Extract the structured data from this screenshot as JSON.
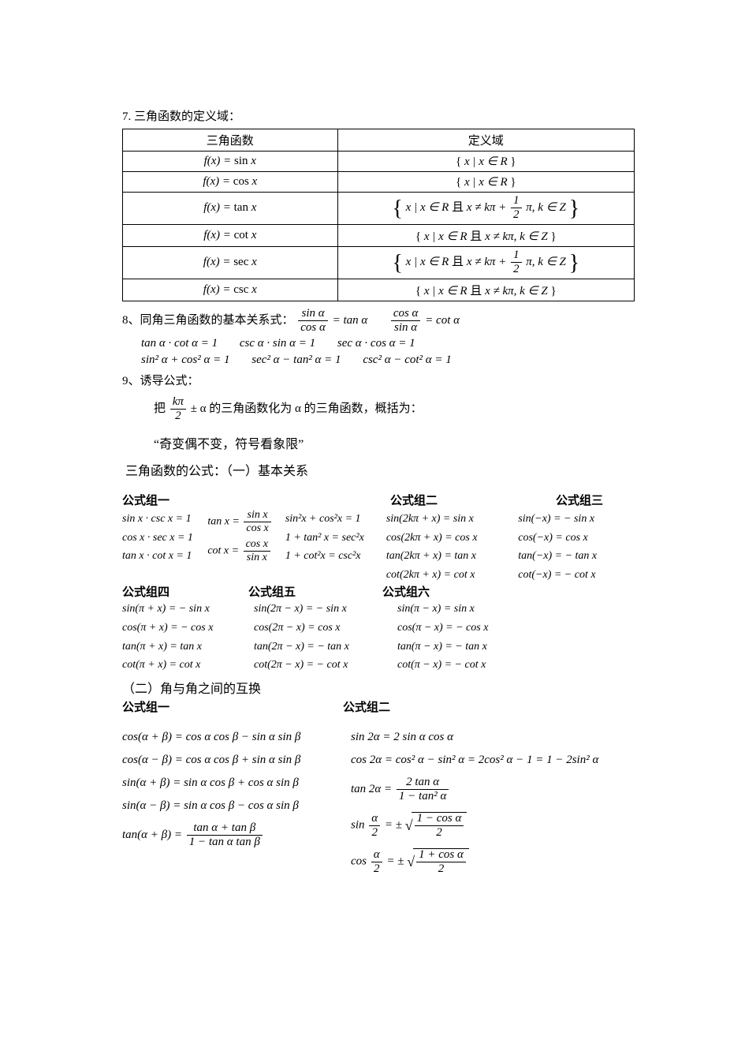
{
  "section7_title": "7. 三角函数的定义域：",
  "domain_table": {
    "headers": [
      "三角函数",
      "定义域"
    ],
    "rows": [
      {
        "func": "f(x) = sin x",
        "domain_type": "R",
        "tall": false
      },
      {
        "func": "f(x) = cos x",
        "domain_type": "R",
        "tall": false
      },
      {
        "func": "f(x) = tan x",
        "domain_type": "halfpi",
        "tall": true
      },
      {
        "func": "f(x) = cot x",
        "domain_type": "kpi",
        "tall": false
      },
      {
        "func": "f(x) = sec x",
        "domain_type": "halfpi",
        "tall": true
      },
      {
        "func": "f(x) = csc x",
        "domain_type": "kpi",
        "tall": false
      }
    ],
    "domain_R": "{ x | x ∈ R }",
    "domain_kpi_prefix": "{ x | x ∈ R 且 x ≠ kπ, k ∈ Z }",
    "domain_halfpi_prefix": "x | x ∈ R 且 x ≠ kπ + ",
    "domain_halfpi_suffix": " π, k ∈ Z"
  },
  "section8_title": "8、同角三角函数的基本关系式：",
  "section8": {
    "line1a_lhs_num": "sin α",
    "line1a_lhs_den": "cos α",
    "line1a_rhs": " = tan α",
    "line1b_lhs_num": "cos α",
    "line1b_lhs_den": "sin α",
    "line1b_rhs": " = cot α",
    "line2a": "tan α · cot α = 1",
    "line2b": "csc α · sin α = 1",
    "line2c": "sec α · cos α = 1",
    "line3a": "sin² α + cos² α = 1",
    "line3b": "sec² α − tan² α = 1",
    "line3c": "csc² α − cot² α = 1"
  },
  "section9_title": "9、诱导公式：",
  "section9": {
    "intro_prefix": "把 ",
    "intro_frac_num": "kπ",
    "intro_frac_den": "2",
    "intro_suffix": " ± α 的三角函数化为 α 的三角函数，概括为：",
    "quote": "“奇变偶不变，符号看象限”",
    "sub1": "三角函数的公式：（一）基本关系"
  },
  "groups": {
    "g1_title": "公式组一",
    "g2_title": "公式组二",
    "g3_title": "公式组三",
    "g4_title": "公式组四",
    "g5_title": "公式组五",
    "g6_title": "公式组六",
    "g1": {
      "c1": [
        "sin x · csc x = 1",
        "cos x · sec x = 1",
        "tan x · cot x = 1"
      ],
      "c2_tan_num": "sin x",
      "c2_tan_den": "cos x",
      "c2_cot_num": "cos x",
      "c2_cot_den": "sin x",
      "c2_tan_lhs": "tan x = ",
      "c2_cot_lhs": "cot x = ",
      "c3": [
        "sin²x + cos²x = 1",
        "1 + tan² x = sec²x",
        "1 + cot²x = csc²x"
      ]
    },
    "g2": [
      "sin(2kπ + x) = sin x",
      "cos(2kπ + x) = cos x",
      "tan(2kπ + x) = tan x",
      "cot(2kπ + x) = cot x"
    ],
    "g3": [
      "sin(−x) = − sin x",
      "cos(−x) = cos x",
      "tan(−x) = − tan x",
      "cot(−x) = − cot x"
    ],
    "g4": [
      "sin(π + x) = − sin x",
      "cos(π + x) = − cos x",
      "tan(π + x) = tan x",
      "cot(π + x) = cot x"
    ],
    "g5": [
      "sin(2π − x) = − sin x",
      "cos(2π − x) = cos x",
      "tan(2π − x) = − tan x",
      "cot(2π − x) = − cot x"
    ],
    "g6": [
      "sin(π − x) = sin x",
      "cos(π − x) = − cos x",
      "tan(π − x) = − tan x",
      "cot(π − x) = − cot x"
    ]
  },
  "section_two_title": "（二）角与角之间的互换",
  "pairs": {
    "left_title": "公式组一",
    "right_title": "公式组二",
    "left": [
      "cos(α + β) = cos α cos β − sin α sin β",
      "cos(α − β) = cos α cos β + sin α sin β",
      "sin(α + β) = sin α cos β + cos α sin β",
      "sin(α − β) = sin α cos β − cos α sin β"
    ],
    "left_tan": {
      "lhs": "tan(α + β) = ",
      "num": "tan α + tan β",
      "den": "1 − tan α tan β"
    },
    "right": {
      "r1": "sin 2α = 2 sin α cos α",
      "r2": "cos 2α = cos² α − sin² α = 2cos² α − 1 = 1 − 2sin² α",
      "r3_lhs": "tan 2α = ",
      "r3_num": "2 tan α",
      "r3_den": "1 − tan² α",
      "r4_lhs": "sin ",
      "r4_frac_num": "α",
      "r4_frac_den": "2",
      "r4_mid": " = ± ",
      "r4_rad_num": "1 − cos α",
      "r4_rad_den": "2",
      "r5_lhs": "cos ",
      "r5_frac_num": "α",
      "r5_frac_den": "2",
      "r5_mid": " = ± ",
      "r5_rad_num": "1 + cos α",
      "r5_rad_den": "2"
    }
  },
  "colors": {
    "text": "#000000",
    "bg": "#ffffff",
    "border": "#000000"
  }
}
